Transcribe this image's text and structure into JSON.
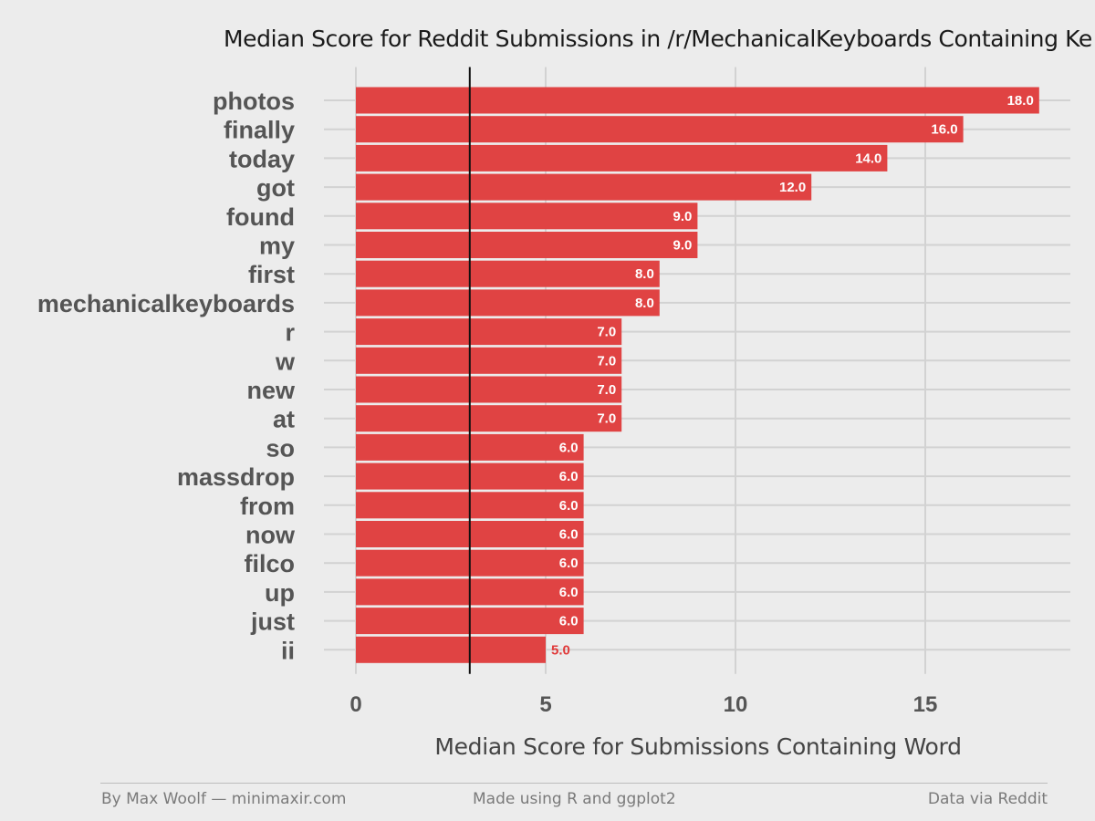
{
  "chart_data": {
    "type": "bar",
    "orientation": "horizontal",
    "title": "Median Score for Reddit Submissions in /r/MechanicalKeyboards Containing Ke",
    "xlabel": "Median Score for Submissions Containing Word",
    "ylabel": "",
    "xlim": [
      0,
      18.5
    ],
    "x_ticks": [
      0,
      5,
      10,
      15
    ],
    "x_tick_labels": [
      "0",
      "5",
      "10",
      "15"
    ],
    "reference_line_x": 3,
    "grid": true,
    "categories": [
      "photos",
      "finally",
      "today",
      "got",
      "found",
      "my",
      "first",
      "mechanicalkeyboards",
      "r",
      "w",
      "new",
      "at",
      "so",
      "massdrop",
      "from",
      "now",
      "filco",
      "up",
      "just",
      "ii"
    ],
    "values": [
      18.0,
      16.0,
      14.0,
      12.0,
      9.0,
      9.0,
      8.0,
      8.0,
      7.0,
      7.0,
      7.0,
      7.0,
      6.0,
      6.0,
      6.0,
      6.0,
      6.0,
      6.0,
      6.0,
      5.0
    ],
    "value_labels": [
      "18.0",
      "16.0",
      "14.0",
      "12.0",
      "9.0",
      "9.0",
      "8.0",
      "8.0",
      "7.0",
      "7.0",
      "7.0",
      "7.0",
      "6.0",
      "6.0",
      "6.0",
      "6.0",
      "6.0",
      "6.0",
      "6.0",
      "5.0"
    ],
    "colors": {
      "bar": "#e04343",
      "bar_label_inside": "#ffffff",
      "bar_label_outside": "#e03a3a",
      "grid": "#d2d2d2",
      "reference_line": "#111111",
      "background": "#ececec"
    }
  },
  "footer": {
    "left": "By Max Woolf — minimaxir.com",
    "center": "Made using R and ggplot2",
    "right": "Data via Reddit"
  }
}
